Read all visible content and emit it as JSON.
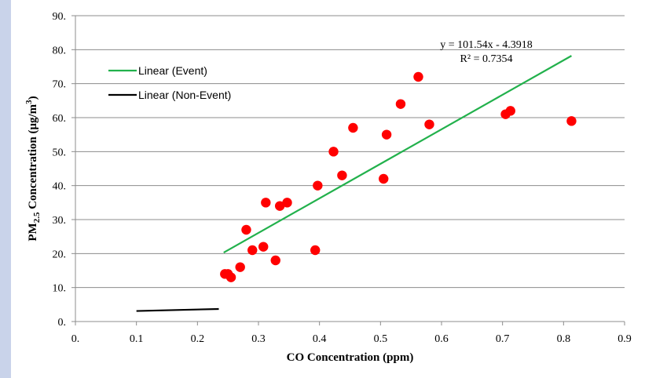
{
  "chart_data": {
    "type": "scatter",
    "xlabel": "CO Concentration (ppm)",
    "ylabel": {
      "prefix": "PM",
      "sub": "2.5",
      "mid": " Concentration (μg/m",
      "sup": "3",
      "suffix": ")"
    },
    "xlim": [
      0,
      0.9
    ],
    "ylim": [
      0,
      90
    ],
    "x_ticks": [
      {
        "value": 0,
        "label": "0."
      },
      {
        "value": 0.1,
        "label": "0.1"
      },
      {
        "value": 0.2,
        "label": "0.2"
      },
      {
        "value": 0.3,
        "label": "0.3"
      },
      {
        "value": 0.4,
        "label": "0.4"
      },
      {
        "value": 0.5,
        "label": "0.5"
      },
      {
        "value": 0.6,
        "label": "0.6"
      },
      {
        "value": 0.7,
        "label": "0.7"
      },
      {
        "value": 0.8,
        "label": "0.8"
      },
      {
        "value": 0.9,
        "label": "0.9"
      }
    ],
    "y_ticks": [
      {
        "value": 0,
        "label": "0."
      },
      {
        "value": 10,
        "label": "10."
      },
      {
        "value": 20,
        "label": "20."
      },
      {
        "value": 30,
        "label": "30."
      },
      {
        "value": 40,
        "label": "40."
      },
      {
        "value": 50,
        "label": "50."
      },
      {
        "value": 60,
        "label": "60."
      },
      {
        "value": 70,
        "label": "70."
      },
      {
        "value": 80,
        "label": "80."
      },
      {
        "value": 90,
        "label": "90."
      }
    ],
    "grid": "horizontal",
    "legend_position": "top-left",
    "points": {
      "color": "#ff0000",
      "x": [
        0.245,
        0.25,
        0.255,
        0.27,
        0.28,
        0.29,
        0.308,
        0.312,
        0.328,
        0.335,
        0.347,
        0.393,
        0.397,
        0.423,
        0.437,
        0.455,
        0.505,
        0.51,
        0.533,
        0.562,
        0.58,
        0.705,
        0.713,
        0.813
      ],
      "y": [
        14,
        14,
        13,
        16,
        27,
        21,
        22,
        35,
        18,
        34,
        35,
        21,
        40,
        50,
        43,
        57,
        42,
        55,
        64,
        72,
        58,
        61,
        62,
        59
      ]
    },
    "trendlines": [
      {
        "name": "Linear (Event)",
        "color": "#22b14c",
        "x": [
          0.243,
          0.813
        ],
        "y": [
          20.3,
          78.2
        ]
      },
      {
        "name": "Linear (Non-Event)",
        "color": "#000000",
        "x": [
          0.1,
          0.235
        ],
        "y": [
          3.1,
          3.7
        ]
      }
    ],
    "annotation": {
      "equation": "y = 101.54x - 4.3918",
      "r2": "R² = 0.7354"
    }
  }
}
